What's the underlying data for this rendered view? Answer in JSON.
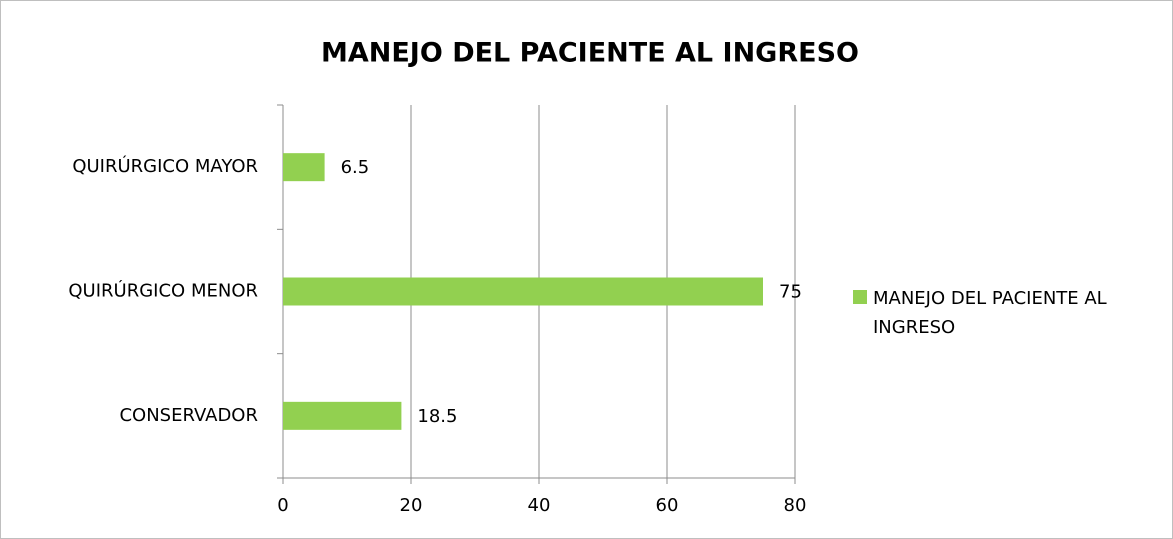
{
  "chart_data": {
    "type": "hbar",
    "title": "MANEJO DEL PACIENTE AL INGRESO",
    "categories": [
      "QUIRÚRGICO MAYOR",
      "QUIRÚRGICO MENOR",
      "CONSERVADOR"
    ],
    "series": [
      {
        "name": "MANEJO DEL PACIENTE AL INGRESO",
        "color": "#92d050",
        "values": [
          6.5,
          75,
          18.5
        ]
      }
    ],
    "xlim": [
      0,
      80
    ],
    "xticks": [
      0,
      20,
      40,
      60,
      80
    ],
    "grid": true,
    "legend": "right"
  }
}
